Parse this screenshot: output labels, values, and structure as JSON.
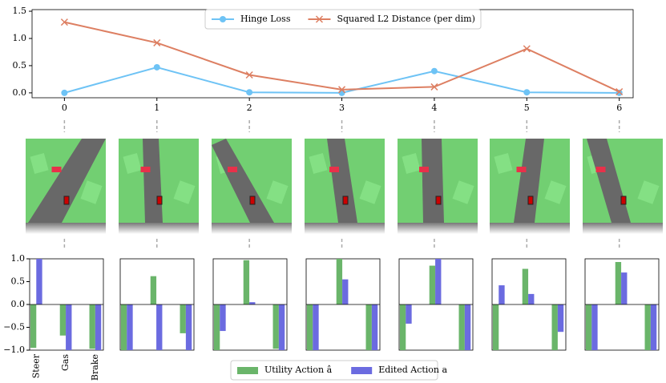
{
  "chart_data": [
    {
      "type": "line",
      "x": [
        0,
        1,
        2,
        3,
        4,
        5,
        6
      ],
      "xlim": [
        -0.35,
        6.15
      ],
      "xticks": [
        0,
        1,
        2,
        3,
        4,
        5,
        6
      ],
      "ylim": [
        -0.09,
        1.53
      ],
      "yticks": [
        {
          "value": 0,
          "label": "0.0"
        },
        {
          "value": 0.5,
          "label": "0.5"
        },
        {
          "value": 1,
          "label": "1.0"
        },
        {
          "value": 1.5,
          "label": "1.5"
        }
      ],
      "legend": "upper center",
      "series": [
        {
          "name": "Hinge Loss",
          "color": "#6ec3f5",
          "marker": "o",
          "values": [
            0,
            0.47,
            0.01,
            0,
            0.4,
            0.01,
            0
          ]
        },
        {
          "name": "Squared L2 Distance (per dim)",
          "color": "#dd7f62",
          "marker": "x",
          "values": [
            1.3,
            0.92,
            0.33,
            0.06,
            0.11,
            0.81,
            0.02
          ]
        }
      ]
    },
    {
      "type": "bar",
      "categories": [
        "Steer",
        "Gas",
        "Brake"
      ],
      "ylim": [
        -1,
        1
      ],
      "yticks": [
        {
          "value": -1,
          "label": "−1.0"
        },
        {
          "value": -0.5,
          "label": "−0.5"
        },
        {
          "value": 0,
          "label": "0.0"
        },
        {
          "value": 0.5,
          "label": "0.5"
        },
        {
          "value": 1,
          "label": "1.0"
        }
      ],
      "legend": "lower center",
      "series": [
        {
          "name": "Utility Action â",
          "color": "#6ab56a"
        },
        {
          "name": "Edited Action a",
          "color": "#6b6be0"
        }
      ],
      "panels": [
        {
          "series": [
            {
              "values": [
                -0.95,
                -0.68,
                -0.97
              ]
            },
            {
              "values": [
                1.0,
                -1.0,
                -1.0
              ]
            }
          ]
        },
        {
          "series": [
            {
              "values": [
                -1.0,
                0.62,
                -0.63
              ]
            },
            {
              "values": [
                -1.0,
                -1.0,
                -1.0
              ]
            }
          ]
        },
        {
          "series": [
            {
              "values": [
                -1.0,
                0.97,
                -0.97
              ]
            },
            {
              "values": [
                -0.58,
                0.05,
                -1.0
              ]
            }
          ]
        },
        {
          "series": [
            {
              "values": [
                -1.0,
                1.0,
                -1.0
              ]
            },
            {
              "values": [
                -1.0,
                0.55,
                -1.0
              ]
            }
          ]
        },
        {
          "series": [
            {
              "values": [
                -1.0,
                0.85,
                -1.0
              ]
            },
            {
              "values": [
                -0.42,
                1.0,
                -1.0
              ]
            }
          ]
        },
        {
          "series": [
            {
              "values": [
                -1.0,
                0.78,
                -1.0
              ]
            },
            {
              "values": [
                0.42,
                0.23,
                -0.6
              ]
            }
          ]
        },
        {
          "series": [
            {
              "values": [
                -1.0,
                0.93,
                -1.0
              ]
            },
            {
              "values": [
                -1.0,
                0.7,
                -1.0
              ]
            }
          ]
        }
      ]
    }
  ]
}
